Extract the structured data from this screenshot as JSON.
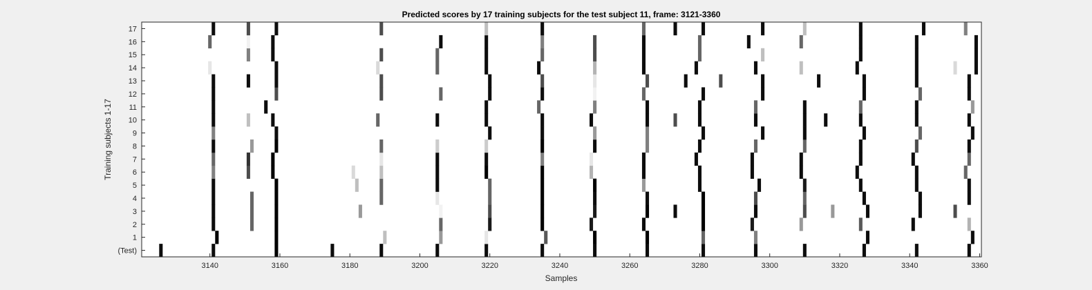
{
  "chart_data": {
    "type": "heatmap",
    "title": "Predicted scores by 17 training subjects for the test subject 11, frame: 3121-3360",
    "xlabel": "Samples",
    "ylabel": "Training subjects 1-17",
    "xlim": [
      3121,
      3360
    ],
    "x_ticks": [
      3140,
      3160,
      3180,
      3200,
      3220,
      3240,
      3260,
      3280,
      3300,
      3320,
      3340,
      3360
    ],
    "rows": [
      "(Test)",
      "1",
      "2",
      "3",
      "4",
      "5",
      "6",
      "7",
      "8",
      "9",
      "10",
      "11",
      "12",
      "13",
      "14",
      "15",
      "16",
      "17"
    ],
    "colormap": "gray (0 = black, 1 = white)",
    "background_value": 1,
    "cells": [
      [
        0,
        3126,
        0.05
      ],
      [
        0,
        3141,
        0.05
      ],
      [
        0,
        3159,
        0.0
      ],
      [
        0,
        3175,
        0.05
      ],
      [
        0,
        3189,
        0.05
      ],
      [
        0,
        3205,
        0.05
      ],
      [
        0,
        3219,
        0.05
      ],
      [
        0,
        3235,
        0.05
      ],
      [
        0,
        3250,
        0.05
      ],
      [
        0,
        3265,
        0.05
      ],
      [
        0,
        3281,
        0.05
      ],
      [
        0,
        3296,
        0.05
      ],
      [
        0,
        3310,
        0.05
      ],
      [
        0,
        3327,
        0.05
      ],
      [
        0,
        3342,
        0.05
      ],
      [
        0,
        3357,
        0.05
      ],
      [
        1,
        3142,
        0.0
      ],
      [
        1,
        3159,
        0.0
      ],
      [
        1,
        3190,
        0.75
      ],
      [
        1,
        3206,
        0.6
      ],
      [
        1,
        3219,
        0.9
      ],
      [
        1,
        3236,
        0.35
      ],
      [
        1,
        3250,
        0.0
      ],
      [
        1,
        3265,
        0.0
      ],
      [
        1,
        3281,
        0.4
      ],
      [
        1,
        3296,
        0.5
      ],
      [
        1,
        3328,
        0.05
      ],
      [
        1,
        3358,
        0.05
      ],
      [
        2,
        3141,
        0.05
      ],
      [
        2,
        3152,
        0.4
      ],
      [
        2,
        3159,
        0.0
      ],
      [
        2,
        3206,
        0.4
      ],
      [
        2,
        3220,
        0.1
      ],
      [
        2,
        3235,
        0.0
      ],
      [
        2,
        3249,
        0.1
      ],
      [
        2,
        3264,
        0.05
      ],
      [
        2,
        3281,
        0.0
      ],
      [
        2,
        3295,
        0.1
      ],
      [
        2,
        3309,
        0.6
      ],
      [
        2,
        3326,
        0.35
      ],
      [
        2,
        3341,
        0.05
      ],
      [
        2,
        3357,
        0.7
      ],
      [
        3,
        3141,
        0.05
      ],
      [
        3,
        3152,
        0.4
      ],
      [
        3,
        3159,
        0.0
      ],
      [
        3,
        3183,
        0.6
      ],
      [
        3,
        3206,
        0.95
      ],
      [
        3,
        3220,
        0.3
      ],
      [
        3,
        3235,
        0.0
      ],
      [
        3,
        3250,
        0.1
      ],
      [
        3,
        3265,
        0.0
      ],
      [
        3,
        3273,
        0.05
      ],
      [
        3,
        3281,
        0.0
      ],
      [
        3,
        3296,
        0.05
      ],
      [
        3,
        3310,
        0.3
      ],
      [
        3,
        3318,
        0.6
      ],
      [
        3,
        3328,
        0.05
      ],
      [
        3,
        3343,
        0.05
      ],
      [
        3,
        3353,
        0.3
      ],
      [
        4,
        3141,
        0.05
      ],
      [
        4,
        3152,
        0.4
      ],
      [
        4,
        3159,
        0.0
      ],
      [
        4,
        3189,
        0.4
      ],
      [
        4,
        3205,
        0.9
      ],
      [
        4,
        3220,
        0.4
      ],
      [
        4,
        3235,
        0.0
      ],
      [
        4,
        3250,
        0.05
      ],
      [
        4,
        3265,
        0.05
      ],
      [
        4,
        3281,
        0.0
      ],
      [
        4,
        3296,
        0.3
      ],
      [
        4,
        3310,
        0.4
      ],
      [
        4,
        3327,
        0.05
      ],
      [
        4,
        3343,
        0.05
      ],
      [
        4,
        3357,
        0.05
      ],
      [
        5,
        3141,
        0.05
      ],
      [
        5,
        3159,
        0.0
      ],
      [
        5,
        3182,
        0.75
      ],
      [
        5,
        3189,
        0.4
      ],
      [
        5,
        3205,
        0.05
      ],
      [
        5,
        3220,
        0.4
      ],
      [
        5,
        3235,
        0.0
      ],
      [
        5,
        3250,
        0.0
      ],
      [
        5,
        3264,
        0.6
      ],
      [
        5,
        3280,
        0.05
      ],
      [
        5,
        3297,
        0.05
      ],
      [
        5,
        3310,
        0.1
      ],
      [
        5,
        3326,
        0.05
      ],
      [
        5,
        3342,
        0.05
      ],
      [
        5,
        3357,
        0.05
      ],
      [
        6,
        3141,
        0.5
      ],
      [
        6,
        3151,
        0.3
      ],
      [
        6,
        3158,
        0.0
      ],
      [
        6,
        3181,
        0.85
      ],
      [
        6,
        3189,
        0.75
      ],
      [
        6,
        3205,
        0.05
      ],
      [
        6,
        3219,
        0.0
      ],
      [
        6,
        3235,
        0.0
      ],
      [
        6,
        3249,
        0.7
      ],
      [
        6,
        3264,
        0.05
      ],
      [
        6,
        3280,
        0.05
      ],
      [
        6,
        3295,
        0.05
      ],
      [
        6,
        3309,
        0.05
      ],
      [
        6,
        3325,
        0.05
      ],
      [
        6,
        3342,
        0.05
      ],
      [
        6,
        3356,
        0.4
      ],
      [
        7,
        3141,
        0.4
      ],
      [
        7,
        3151,
        0.2
      ],
      [
        7,
        3158,
        0.0
      ],
      [
        7,
        3189,
        0.9
      ],
      [
        7,
        3205,
        0.05
      ],
      [
        7,
        3219,
        0.05
      ],
      [
        7,
        3235,
        0.5
      ],
      [
        7,
        3249,
        0.9
      ],
      [
        7,
        3264,
        0.05
      ],
      [
        7,
        3279,
        0.05
      ],
      [
        7,
        3295,
        0.05
      ],
      [
        7,
        3309,
        0.05
      ],
      [
        7,
        3326,
        0.05
      ],
      [
        7,
        3341,
        0.05
      ],
      [
        7,
        3357,
        0.4
      ],
      [
        8,
        3141,
        0.05
      ],
      [
        8,
        3152,
        0.6
      ],
      [
        8,
        3159,
        0.0
      ],
      [
        8,
        3189,
        0.4
      ],
      [
        8,
        3205,
        0.8
      ],
      [
        8,
        3219,
        0.8
      ],
      [
        8,
        3235,
        0.0
      ],
      [
        8,
        3250,
        0.05
      ],
      [
        8,
        3265,
        0.5
      ],
      [
        8,
        3280,
        0.05
      ],
      [
        8,
        3296,
        0.4
      ],
      [
        8,
        3310,
        0.4
      ],
      [
        8,
        3326,
        0.05
      ],
      [
        8,
        3342,
        0.3
      ],
      [
        8,
        3357,
        0.05
      ],
      [
        9,
        3141,
        0.5
      ],
      [
        9,
        3159,
        0.05
      ],
      [
        9,
        3220,
        0.05
      ],
      [
        9,
        3235,
        0.05
      ],
      [
        9,
        3250,
        0.6
      ],
      [
        9,
        3265,
        0.5
      ],
      [
        9,
        3281,
        0.05
      ],
      [
        9,
        3298,
        0.05
      ],
      [
        9,
        3310,
        0.05
      ],
      [
        9,
        3327,
        0.05
      ],
      [
        9,
        3343,
        0.4
      ],
      [
        9,
        3358,
        0.05
      ],
      [
        10,
        3141,
        0.05
      ],
      [
        10,
        3151,
        0.75
      ],
      [
        10,
        3158,
        0.05
      ],
      [
        10,
        3188,
        0.4
      ],
      [
        10,
        3205,
        0.05
      ],
      [
        10,
        3219,
        0.05
      ],
      [
        10,
        3235,
        0.05
      ],
      [
        10,
        3249,
        0.05
      ],
      [
        10,
        3265,
        0.05
      ],
      [
        10,
        3273,
        0.3
      ],
      [
        10,
        3280,
        0.05
      ],
      [
        10,
        3296,
        0.05
      ],
      [
        10,
        3310,
        0.05
      ],
      [
        10,
        3316,
        0.05
      ],
      [
        10,
        3326,
        0.05
      ],
      [
        10,
        3342,
        0.05
      ],
      [
        10,
        3357,
        0.05
      ],
      [
        11,
        3141,
        0.05
      ],
      [
        11,
        3156,
        0.05
      ],
      [
        11,
        3219,
        0.05
      ],
      [
        11,
        3234,
        0.4
      ],
      [
        11,
        3250,
        0.5
      ],
      [
        11,
        3265,
        0.05
      ],
      [
        11,
        3280,
        0.05
      ],
      [
        11,
        3296,
        0.4
      ],
      [
        11,
        3310,
        0.05
      ],
      [
        11,
        3326,
        0.4
      ],
      [
        11,
        3342,
        0.05
      ],
      [
        11,
        3358,
        0.6
      ],
      [
        12,
        3141,
        0.05
      ],
      [
        12,
        3159,
        0.3
      ],
      [
        12,
        3189,
        0.3
      ],
      [
        12,
        3206,
        0.4
      ],
      [
        12,
        3220,
        0.05
      ],
      [
        12,
        3235,
        0.05
      ],
      [
        12,
        3250,
        0.95
      ],
      [
        12,
        3264,
        0.4
      ],
      [
        12,
        3281,
        0.05
      ],
      [
        12,
        3298,
        0.05
      ],
      [
        12,
        3327,
        0.05
      ],
      [
        12,
        3343,
        0.4
      ],
      [
        12,
        3357,
        0.05
      ],
      [
        13,
        3141,
        0.05
      ],
      [
        13,
        3151,
        0.05
      ],
      [
        13,
        3159,
        0.05
      ],
      [
        13,
        3189,
        0.3
      ],
      [
        13,
        3220,
        0.05
      ],
      [
        13,
        3235,
        0.3
      ],
      [
        13,
        3250,
        0.9
      ],
      [
        13,
        3265,
        0.3
      ],
      [
        13,
        3276,
        0.05
      ],
      [
        13,
        3286,
        0.3
      ],
      [
        13,
        3298,
        0.05
      ],
      [
        13,
        3314,
        0.05
      ],
      [
        13,
        3327,
        0.05
      ],
      [
        13,
        3342,
        0.05
      ],
      [
        13,
        3357,
        0.05
      ],
      [
        14,
        3140,
        0.9
      ],
      [
        14,
        3159,
        0.05
      ],
      [
        14,
        3188,
        0.85
      ],
      [
        14,
        3205,
        0.4
      ],
      [
        14,
        3219,
        0.05
      ],
      [
        14,
        3234,
        0.05
      ],
      [
        14,
        3250,
        0.7
      ],
      [
        14,
        3264,
        0.05
      ],
      [
        14,
        3279,
        0.05
      ],
      [
        14,
        3296,
        0.05
      ],
      [
        14,
        3309,
        0.75
      ],
      [
        14,
        3325,
        0.05
      ],
      [
        14,
        3342,
        0.05
      ],
      [
        14,
        3353,
        0.85
      ],
      [
        14,
        3359,
        0.05
      ],
      [
        15,
        3151,
        0.5
      ],
      [
        15,
        3158,
        0.05
      ],
      [
        15,
        3189,
        0.3
      ],
      [
        15,
        3205,
        0.4
      ],
      [
        15,
        3219,
        0.05
      ],
      [
        15,
        3235,
        0.4
      ],
      [
        15,
        3250,
        0.3
      ],
      [
        15,
        3264,
        0.05
      ],
      [
        15,
        3280,
        0.4
      ],
      [
        15,
        3298,
        0.75
      ],
      [
        15,
        3326,
        0.05
      ],
      [
        15,
        3342,
        0.05
      ],
      [
        15,
        3359,
        0.05
      ],
      [
        16,
        3140,
        0.4
      ],
      [
        16,
        3151,
        0.95
      ],
      [
        16,
        3158,
        0.05
      ],
      [
        16,
        3206,
        0.05
      ],
      [
        16,
        3219,
        0.05
      ],
      [
        16,
        3235,
        0.5
      ],
      [
        16,
        3250,
        0.3
      ],
      [
        16,
        3264,
        0.05
      ],
      [
        16,
        3280,
        0.4
      ],
      [
        16,
        3294,
        0.05
      ],
      [
        16,
        3309,
        0.4
      ],
      [
        16,
        3326,
        0.05
      ],
      [
        16,
        3342,
        0.05
      ],
      [
        16,
        3359,
        0.05
      ],
      [
        17,
        3141,
        0.05
      ],
      [
        17,
        3151,
        0.3
      ],
      [
        17,
        3159,
        0.05
      ],
      [
        17,
        3189,
        0.3
      ],
      [
        17,
        3219,
        0.75
      ],
      [
        17,
        3235,
        0.05
      ],
      [
        17,
        3264,
        0.4
      ],
      [
        17,
        3273,
        0.05
      ],
      [
        17,
        3281,
        0.05
      ],
      [
        17,
        3298,
        0.05
      ],
      [
        17,
        3310,
        0.75
      ],
      [
        17,
        3326,
        0.05
      ],
      [
        17,
        3344,
        0.05
      ],
      [
        17,
        3356,
        0.5
      ]
    ]
  }
}
